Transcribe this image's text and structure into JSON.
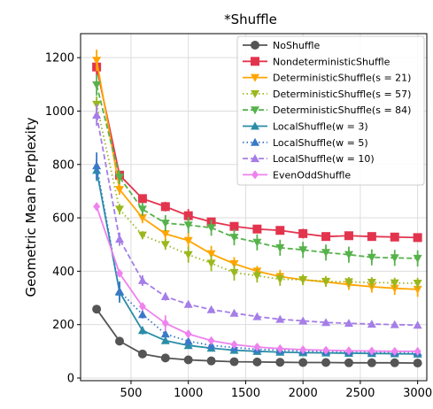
{
  "chart_data": {
    "type": "line",
    "title": "*Shuffle",
    "xlabel": "",
    "ylabel": "Geometric Mean Perplexity",
    "xlim": [
      60,
      3080
    ],
    "ylim": [
      -10,
      1290
    ],
    "xticks": [
      500,
      1000,
      1500,
      2000,
      2500,
      3000
    ],
    "yticks": [
      0,
      200,
      400,
      600,
      800,
      1000,
      1200
    ],
    "grid": true,
    "legend_position": "top-right",
    "x": [
      200,
      400,
      600,
      800,
      1000,
      1200,
      1400,
      1600,
      1800,
      2000,
      2200,
      2400,
      2600,
      2800,
      3000
    ],
    "series": [
      {
        "name": "NoShuffle",
        "color": "#555555",
        "dash": "solid",
        "marker": "circle",
        "values": [
          258,
          138,
          90,
          75,
          68,
          64,
          61,
          60,
          59,
          58,
          58,
          57,
          57,
          57,
          56
        ],
        "err": [
          5,
          4,
          3,
          2,
          2,
          2,
          2,
          2,
          2,
          2,
          2,
          2,
          2,
          2,
          2
        ]
      },
      {
        "name": "NondeterministicShuffle",
        "color": "#e3344e",
        "dash": "solid",
        "marker": "square",
        "values": [
          1165,
          760,
          672,
          642,
          608,
          585,
          568,
          558,
          553,
          541,
          530,
          533,
          530,
          528,
          526
        ],
        "err": [
          30,
          15,
          12,
          18,
          25,
          12,
          10,
          12,
          15,
          18,
          10,
          12,
          10,
          12,
          14
        ]
      },
      {
        "name": "DeterministicShuffle(s = 21)",
        "color": "#ffa500",
        "dash": "solid",
        "marker": "triangle-down",
        "values": [
          1190,
          706,
          600,
          540,
          515,
          465,
          428,
          400,
          380,
          368,
          360,
          350,
          342,
          336,
          332
        ],
        "err": [
          40,
          20,
          20,
          25,
          30,
          30,
          25,
          20,
          25,
          20,
          18,
          20,
          22,
          25,
          28
        ]
      },
      {
        "name": "DeterministicShuffle(s = 57)",
        "color": "#9ab81e",
        "dash": "dotted",
        "marker": "triangle-down",
        "values": [
          1025,
          632,
          535,
          500,
          462,
          430,
          395,
          383,
          370,
          368,
          362,
          360,
          358,
          356,
          355
        ],
        "err": [
          30,
          20,
          15,
          20,
          30,
          30,
          30,
          25,
          25,
          20,
          20,
          18,
          20,
          20,
          20
        ]
      },
      {
        "name": "DeterministicShuffle(s = 84)",
        "color": "#56b24b",
        "dash": "dashed",
        "marker": "triangle-down",
        "values": [
          1098,
          752,
          632,
          580,
          573,
          563,
          527,
          508,
          488,
          480,
          470,
          462,
          452,
          450,
          448
        ],
        "err": [
          40,
          25,
          25,
          30,
          30,
          30,
          30,
          30,
          30,
          30,
          30,
          30,
          30,
          30,
          30
        ]
      },
      {
        "name": "LocalShuffle(w = 3)",
        "color": "#2a8da6",
        "dash": "solid",
        "marker": "triangle-up",
        "values": [
          778,
          322,
          178,
          140,
          122,
          112,
          104,
          100,
          97,
          95,
          94,
          93,
          92,
          91,
          90
        ],
        "err": [
          40,
          40,
          15,
          10,
          8,
          6,
          5,
          5,
          5,
          5,
          5,
          5,
          5,
          5,
          5
        ]
      },
      {
        "name": "LocalShuffle(w = 5)",
        "color": "#3a78c9",
        "dash": "dotted",
        "marker": "triangle-up",
        "values": [
          795,
          325,
          238,
          165,
          138,
          122,
          114,
          108,
          104,
          101,
          100,
          99,
          98,
          97,
          96
        ],
        "err": [
          50,
          35,
          15,
          12,
          10,
          8,
          6,
          6,
          6,
          6,
          6,
          6,
          6,
          6,
          6
        ]
      },
      {
        "name": "LocalShuffle(w = 10)",
        "color": "#a57ee8",
        "dash": "dashed",
        "marker": "triangle-up",
        "values": [
          985,
          520,
          365,
          305,
          276,
          256,
          243,
          230,
          220,
          214,
          208,
          205,
          202,
          200,
          198
        ],
        "err": [
          40,
          25,
          20,
          15,
          12,
          10,
          10,
          8,
          8,
          8,
          8,
          8,
          8,
          8,
          8
        ]
      },
      {
        "name": "EvenOddShuffle",
        "color": "#ee82ee",
        "dash": "solid",
        "marker": "diamond",
        "values": [
          642,
          392,
          268,
          205,
          165,
          140,
          125,
          116,
          110,
          106,
          104,
          102,
          101,
          100,
          100
        ],
        "err": [
          15,
          12,
          12,
          30,
          15,
          10,
          8,
          8,
          6,
          6,
          6,
          6,
          6,
          6,
          6
        ]
      }
    ]
  }
}
